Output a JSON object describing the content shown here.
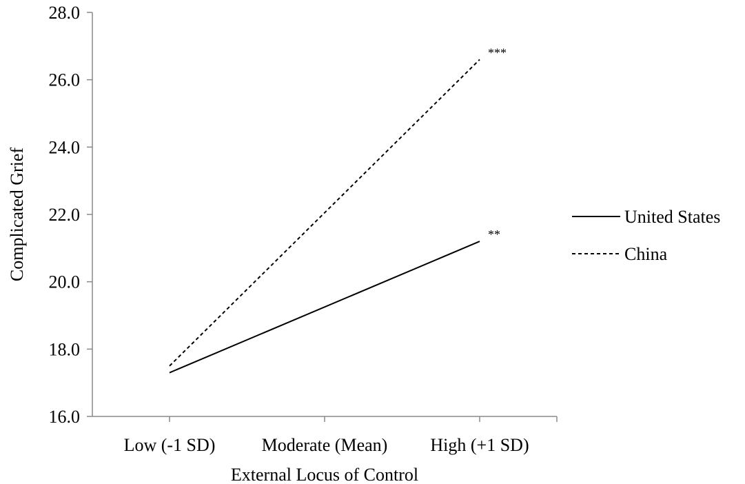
{
  "chart_data": {
    "type": "line",
    "categories": [
      "Low (-1 SD)",
      "Moderate (Mean)",
      "High (+1 SD)"
    ],
    "xlabel": "External Locus of Control",
    "ylabel": "Complicated Grief",
    "ylim": [
      16,
      28
    ],
    "yticks": [
      "16.0",
      "18.0",
      "20.0",
      "22.0",
      "24.0",
      "26.0",
      "28.0"
    ],
    "grid": false,
    "legend_position": "right",
    "series": [
      {
        "name": "United States",
        "line_style": "solid",
        "color": "#000000",
        "x": [
          "Low (-1 SD)",
          "High (+1 SD)"
        ],
        "values": [
          17.3,
          21.2
        ],
        "end_annotation": "**"
      },
      {
        "name": "China",
        "line_style": "dashed",
        "color": "#000000",
        "x": [
          "Low (-1 SD)",
          "High (+1 SD)"
        ],
        "values": [
          17.5,
          26.6
        ],
        "end_annotation": "***"
      }
    ]
  }
}
